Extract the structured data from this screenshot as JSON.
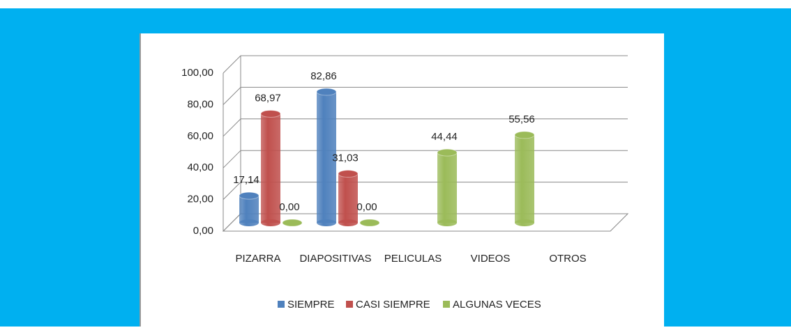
{
  "chart_data": {
    "type": "bar",
    "categories": [
      "PIZARRA",
      "DIAPOSITIVAS",
      "PELICULAS",
      "VIDEOS",
      "OTROS"
    ],
    "series": [
      {
        "name": "SIEMPRE",
        "color": "#4f81bd",
        "values": [
          17.14,
          82.86,
          null,
          null,
          null
        ],
        "value_labels": [
          "17,14",
          "82,86",
          null,
          null,
          null
        ]
      },
      {
        "name": "CASI SIEMPRE",
        "color": "#c0504d",
        "values": [
          68.97,
          31.03,
          null,
          null,
          null
        ],
        "value_labels": [
          "68,97",
          "31,03",
          null,
          null,
          null
        ]
      },
      {
        "name": "ALGUNAS VECES",
        "color": "#9bbb59",
        "values": [
          0,
          0,
          44.44,
          55.56,
          null
        ],
        "value_labels": [
          "0,00",
          "0,00",
          "44,44",
          "55,56",
          null
        ]
      }
    ],
    "ylim": [
      0,
      100
    ],
    "yticks": [
      {
        "value": 0,
        "label": "0,00"
      },
      {
        "value": 20,
        "label": "20,00"
      },
      {
        "value": 40,
        "label": "40,00"
      },
      {
        "value": 60,
        "label": "60,00"
      },
      {
        "value": 80,
        "label": "80,00"
      },
      {
        "value": 100,
        "label": "100,00"
      }
    ],
    "grid": true,
    "legend": "bottom"
  }
}
